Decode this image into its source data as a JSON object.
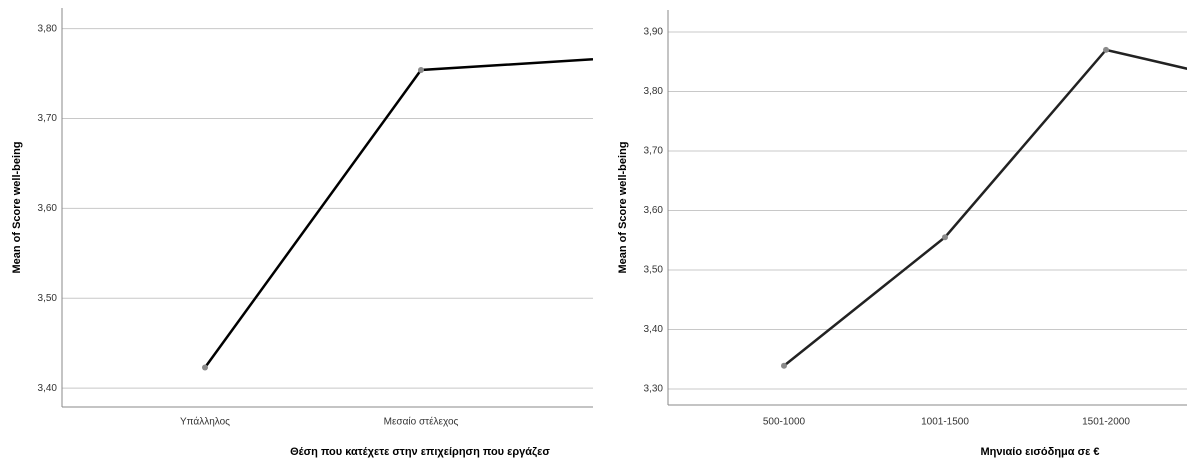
{
  "chart_data": [
    {
      "type": "line",
      "xlabel": "Θέση που κατέχετε στην επιχείρηση που εργάζεσ",
      "ylabel": "Mean of Score well-being",
      "categories": [
        "Υπάλληλος",
        "Μεσαίο στέλεχος",
        null
      ],
      "values": [
        3.423,
        3.754,
        3.769
      ],
      "color": "#000000",
      "marker_color": "#8a8a8a",
      "ylim": [
        3.379,
        3.823
      ],
      "grid": true,
      "yticks": [
        {
          "value": 3.4,
          "label": "3,40"
        },
        {
          "value": 3.5,
          "label": "3,50"
        },
        {
          "value": 3.6,
          "label": "3,60"
        },
        {
          "value": 3.7,
          "label": "3,70"
        },
        {
          "value": 3.8,
          "label": "3,80"
        }
      ]
    },
    {
      "type": "line",
      "xlabel": "Μηνιαίο εισόδημα σε €",
      "ylabel": "Mean of Score well-being",
      "categories": [
        "500-1000",
        "1001-1500",
        "1501-2000",
        null
      ],
      "values": [
        3.339,
        3.555,
        3.87,
        3.807
      ],
      "color": "#222222",
      "marker_color": "#8a8a8a",
      "ylim": [
        3.273,
        3.937
      ],
      "grid": true,
      "yticks": [
        {
          "value": 3.3,
          "label": "3,30"
        },
        {
          "value": 3.4,
          "label": "3,40"
        },
        {
          "value": 3.5,
          "label": "3,50"
        },
        {
          "value": 3.6,
          "label": "3,60"
        },
        {
          "value": 3.7,
          "label": "3,70"
        },
        {
          "value": 3.8,
          "label": "3,80"
        },
        {
          "value": 3.9,
          "label": "3,90"
        }
      ]
    }
  ]
}
